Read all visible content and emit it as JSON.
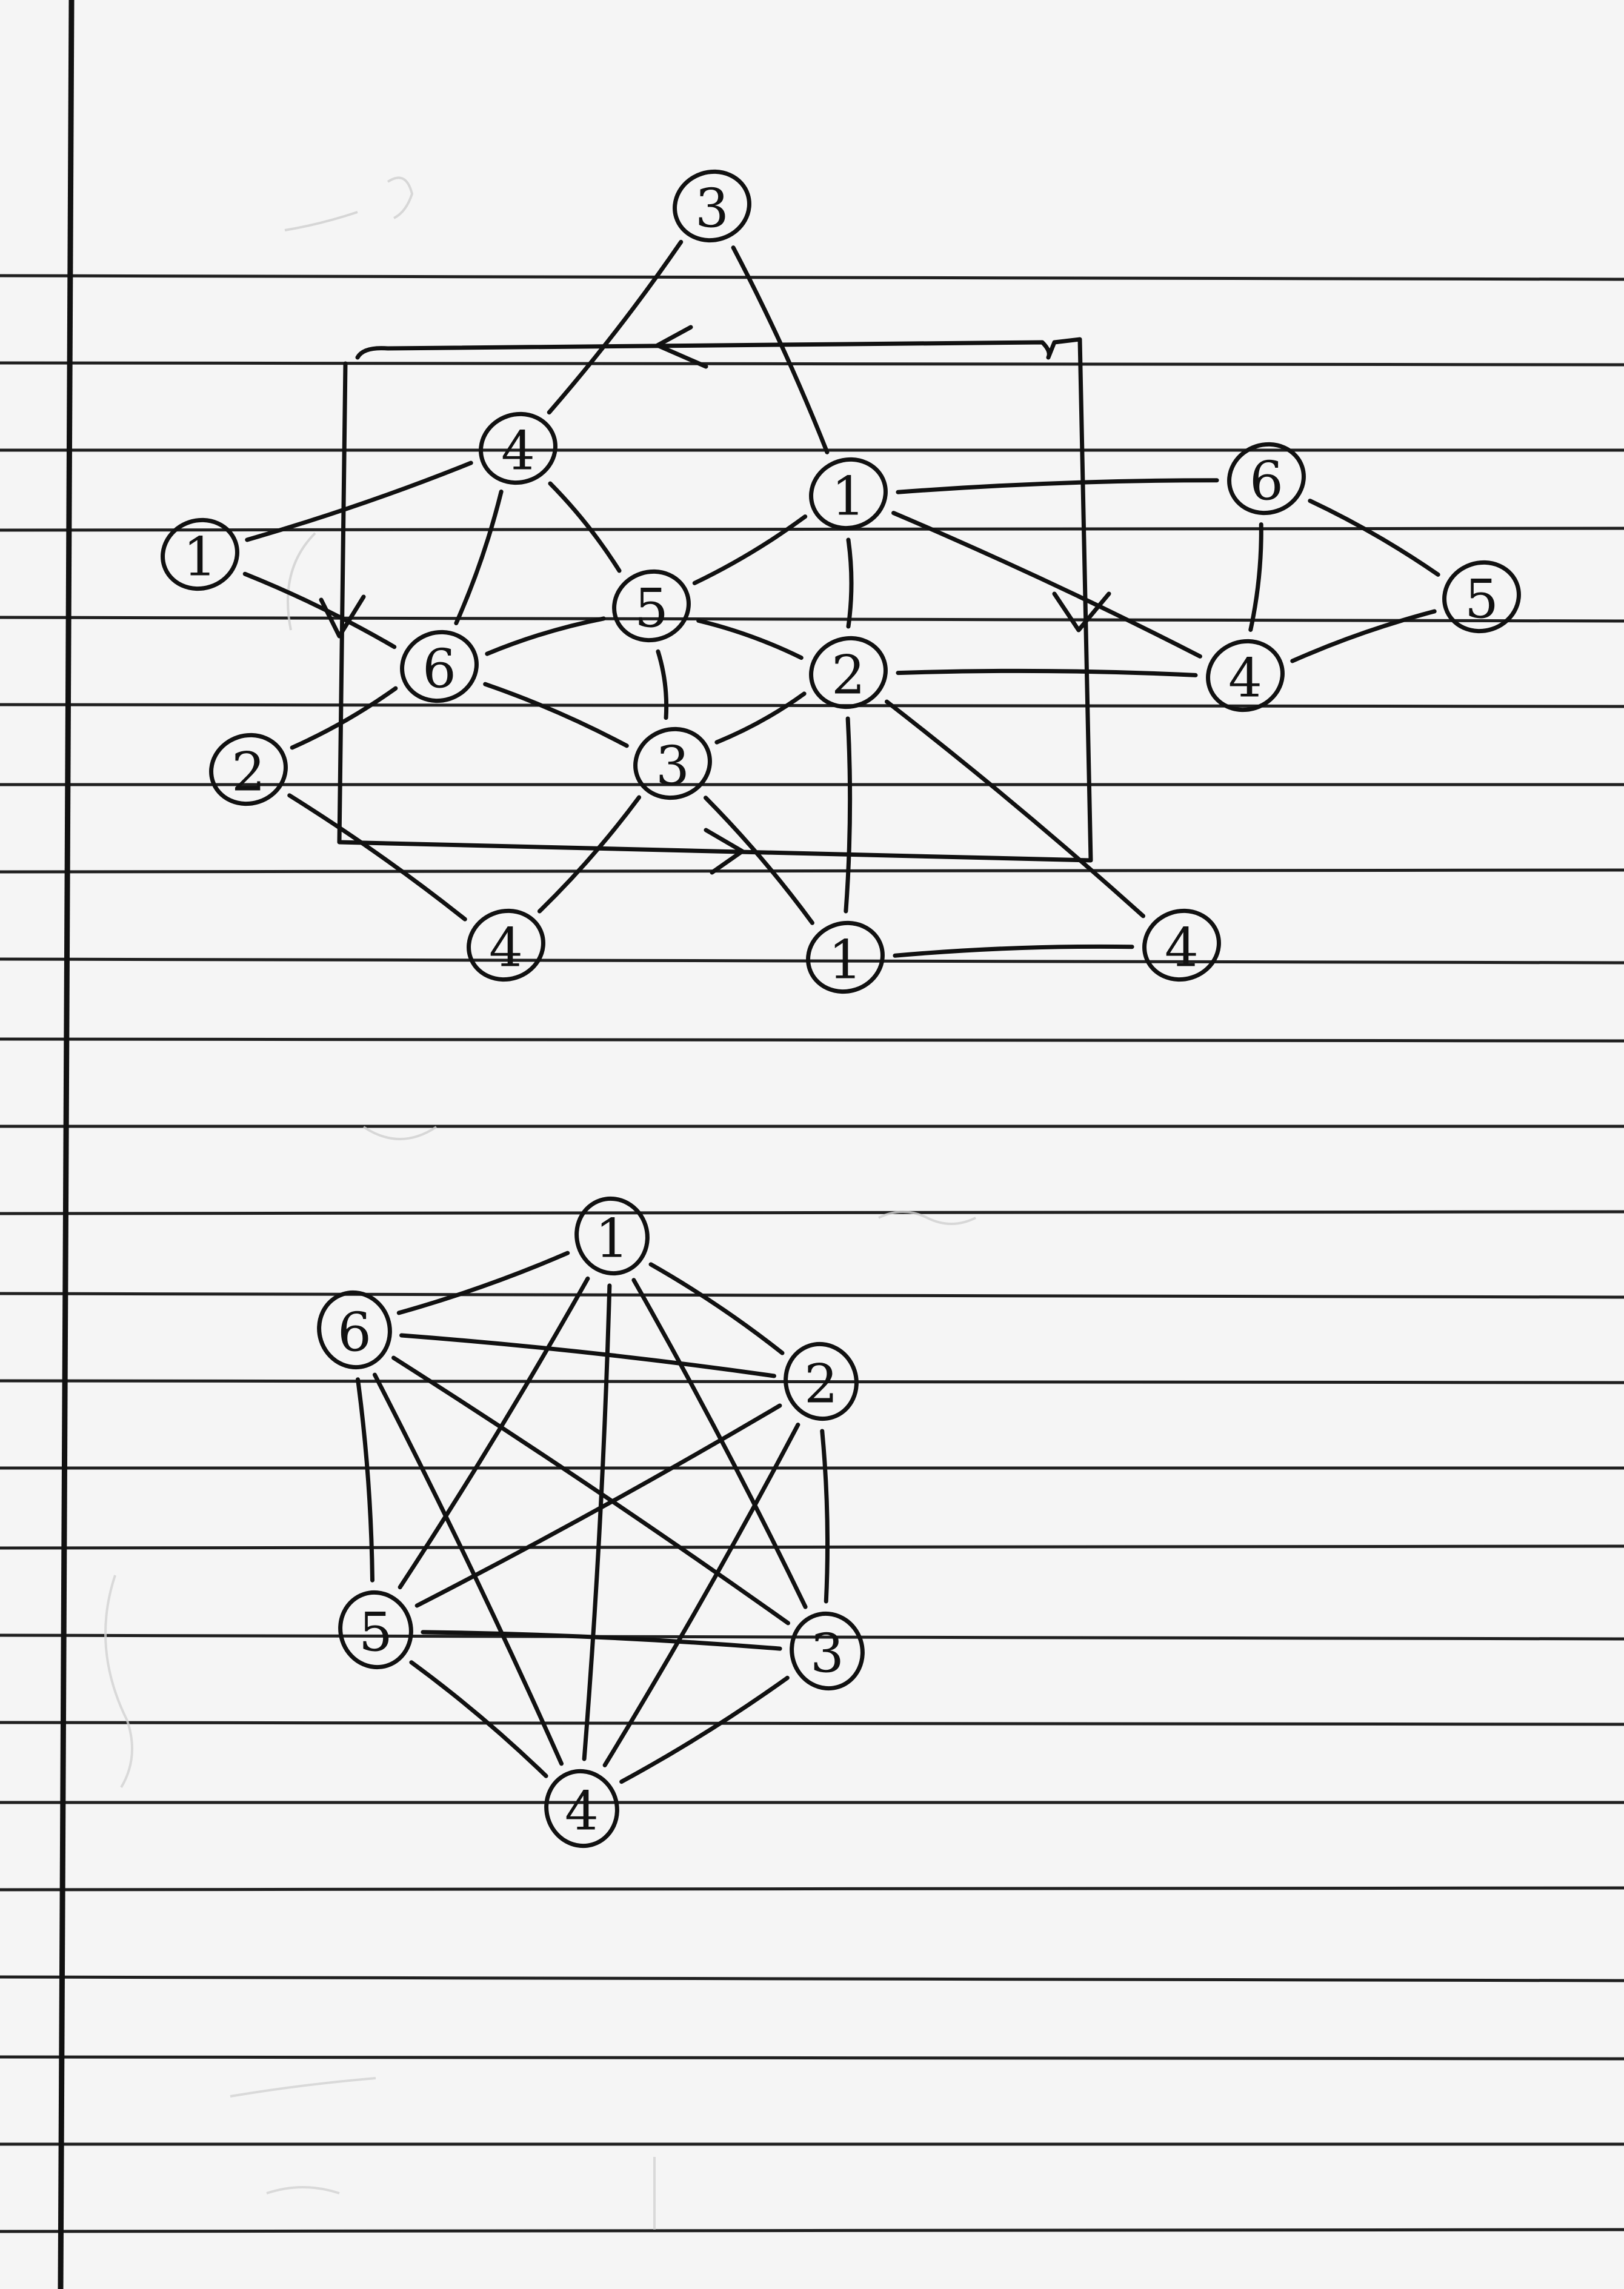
{
  "graph_top": {
    "nodes": [
      {
        "id": "t3a",
        "label": "3"
      },
      {
        "id": "t4a",
        "label": "4"
      },
      {
        "id": "t1a",
        "label": "1"
      },
      {
        "id": "t1b",
        "label": "1"
      },
      {
        "id": "t6a",
        "label": "6"
      },
      {
        "id": "t5a",
        "label": "5"
      },
      {
        "id": "t5b",
        "label": "5"
      },
      {
        "id": "t6b",
        "label": "6"
      },
      {
        "id": "t2a",
        "label": "2"
      },
      {
        "id": "t4b",
        "label": "4"
      },
      {
        "id": "t2b",
        "label": "2"
      },
      {
        "id": "t3b",
        "label": "3"
      },
      {
        "id": "t4c",
        "label": "4"
      },
      {
        "id": "t1c",
        "label": "1"
      },
      {
        "id": "t4d",
        "label": "4"
      }
    ],
    "edges": [
      [
        "t3a",
        "t4a"
      ],
      [
        "t3a",
        "t1a"
      ],
      [
        "t4a",
        "t1b"
      ],
      [
        "t4a",
        "t5a"
      ],
      [
        "t4a",
        "t6b"
      ],
      [
        "t1a",
        "t5a"
      ],
      [
        "t1a",
        "t6a"
      ],
      [
        "t1a",
        "t2a"
      ],
      [
        "t1a",
        "t4b"
      ],
      [
        "t6a",
        "t4b"
      ],
      [
        "t6a",
        "t5b"
      ],
      [
        "t4b",
        "t5b"
      ],
      [
        "t1b",
        "t6b"
      ],
      [
        "t6b",
        "t5a"
      ],
      [
        "t6b",
        "t3b"
      ],
      [
        "t6b",
        "t2b"
      ],
      [
        "t5a",
        "t2a"
      ],
      [
        "t5a",
        "t3b"
      ],
      [
        "t2a",
        "t3b"
      ],
      [
        "t2a",
        "t4b"
      ],
      [
        "t2a",
        "t1c"
      ],
      [
        "t2a",
        "t4d"
      ],
      [
        "t2b",
        "t4c"
      ],
      [
        "t3b",
        "t4c"
      ],
      [
        "t3b",
        "t1c"
      ],
      [
        "t1c",
        "t4d"
      ]
    ]
  },
  "graph_bottom": {
    "nodes": [
      {
        "id": "b1",
        "label": "1"
      },
      {
        "id": "b6",
        "label": "6"
      },
      {
        "id": "b2",
        "label": "2"
      },
      {
        "id": "b5",
        "label": "5"
      },
      {
        "id": "b3",
        "label": "3"
      },
      {
        "id": "b4",
        "label": "4"
      }
    ],
    "edges": [
      [
        "b1",
        "b6"
      ],
      [
        "b1",
        "b2"
      ],
      [
        "b1",
        "b5"
      ],
      [
        "b1",
        "b3"
      ],
      [
        "b1",
        "b4"
      ],
      [
        "b6",
        "b2"
      ],
      [
        "b6",
        "b5"
      ],
      [
        "b6",
        "b3"
      ],
      [
        "b6",
        "b4"
      ],
      [
        "b2",
        "b5"
      ],
      [
        "b2",
        "b3"
      ],
      [
        "b2",
        "b4"
      ],
      [
        "b5",
        "b3"
      ],
      [
        "b5",
        "b4"
      ],
      [
        "b3",
        "b4"
      ]
    ]
  }
}
